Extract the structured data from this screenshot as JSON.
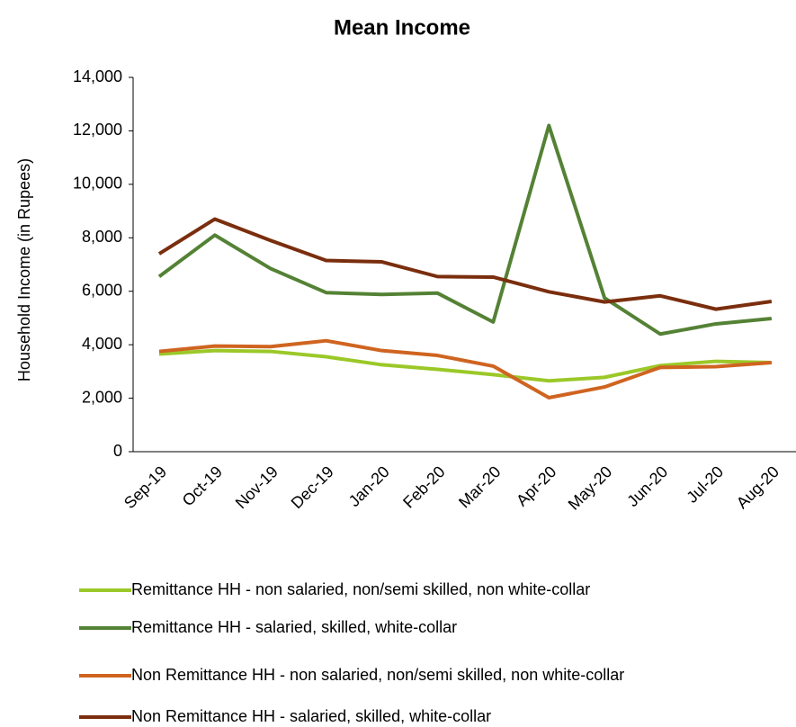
{
  "chart_data": {
    "type": "line",
    "title": "Mean Income",
    "y_label": "Household Income (in Rupees)",
    "categories": [
      "Sep-19",
      "Oct-19",
      "Nov-19",
      "Dec-19",
      "Jan-20",
      "Feb-20",
      "Mar-20",
      "Apr-20",
      "May-20",
      "Jun-20",
      "Jul-20",
      "Aug-20"
    ],
    "ylim": [
      0,
      14000
    ],
    "yticks": [
      0,
      {
        "value": 2000,
        "label": "2,000"
      },
      {
        "value": 4000,
        "label": "4,000"
      },
      {
        "value": 6000,
        "label": "6,000"
      },
      {
        "value": 8000,
        "label": "8,000"
      },
      {
        "value": 10000,
        "label": "10,000"
      },
      {
        "value": 12000,
        "label": "12,000"
      },
      {
        "value": 14000,
        "label": "14,000"
      }
    ],
    "grid": false,
    "legend": "bottom",
    "series": [
      {
        "name": "Remittance HH - non salaried, non/semi skilled, non white-collar",
        "color": "#9bc828",
        "values": [
          3650,
          3780,
          3750,
          3550,
          3250,
          3080,
          2880,
          2650,
          2780,
          3220,
          3380,
          3330
        ]
      },
      {
        "name": "Remittance HH - salaried, skilled, white-collar",
        "color": "#548235",
        "values": [
          6550,
          8100,
          6850,
          5950,
          5880,
          5930,
          4850,
          12200,
          5750,
          4400,
          4780,
          4980
        ]
      },
      {
        "name": "Non Remittance HH - non salaried, non/semi skilled, non white-collar",
        "color": "#cf6420",
        "values": [
          3750,
          3950,
          3930,
          4150,
          3780,
          3600,
          3200,
          2020,
          2420,
          3150,
          3180,
          3330
        ]
      },
      {
        "name": "Non Remittance HH - salaried, skilled, white-collar",
        "color": "#7a2e0e",
        "values": [
          7400,
          8700,
          7900,
          7150,
          7100,
          6550,
          6530,
          5980,
          5600,
          5830,
          5330,
          5620
        ]
      }
    ]
  }
}
